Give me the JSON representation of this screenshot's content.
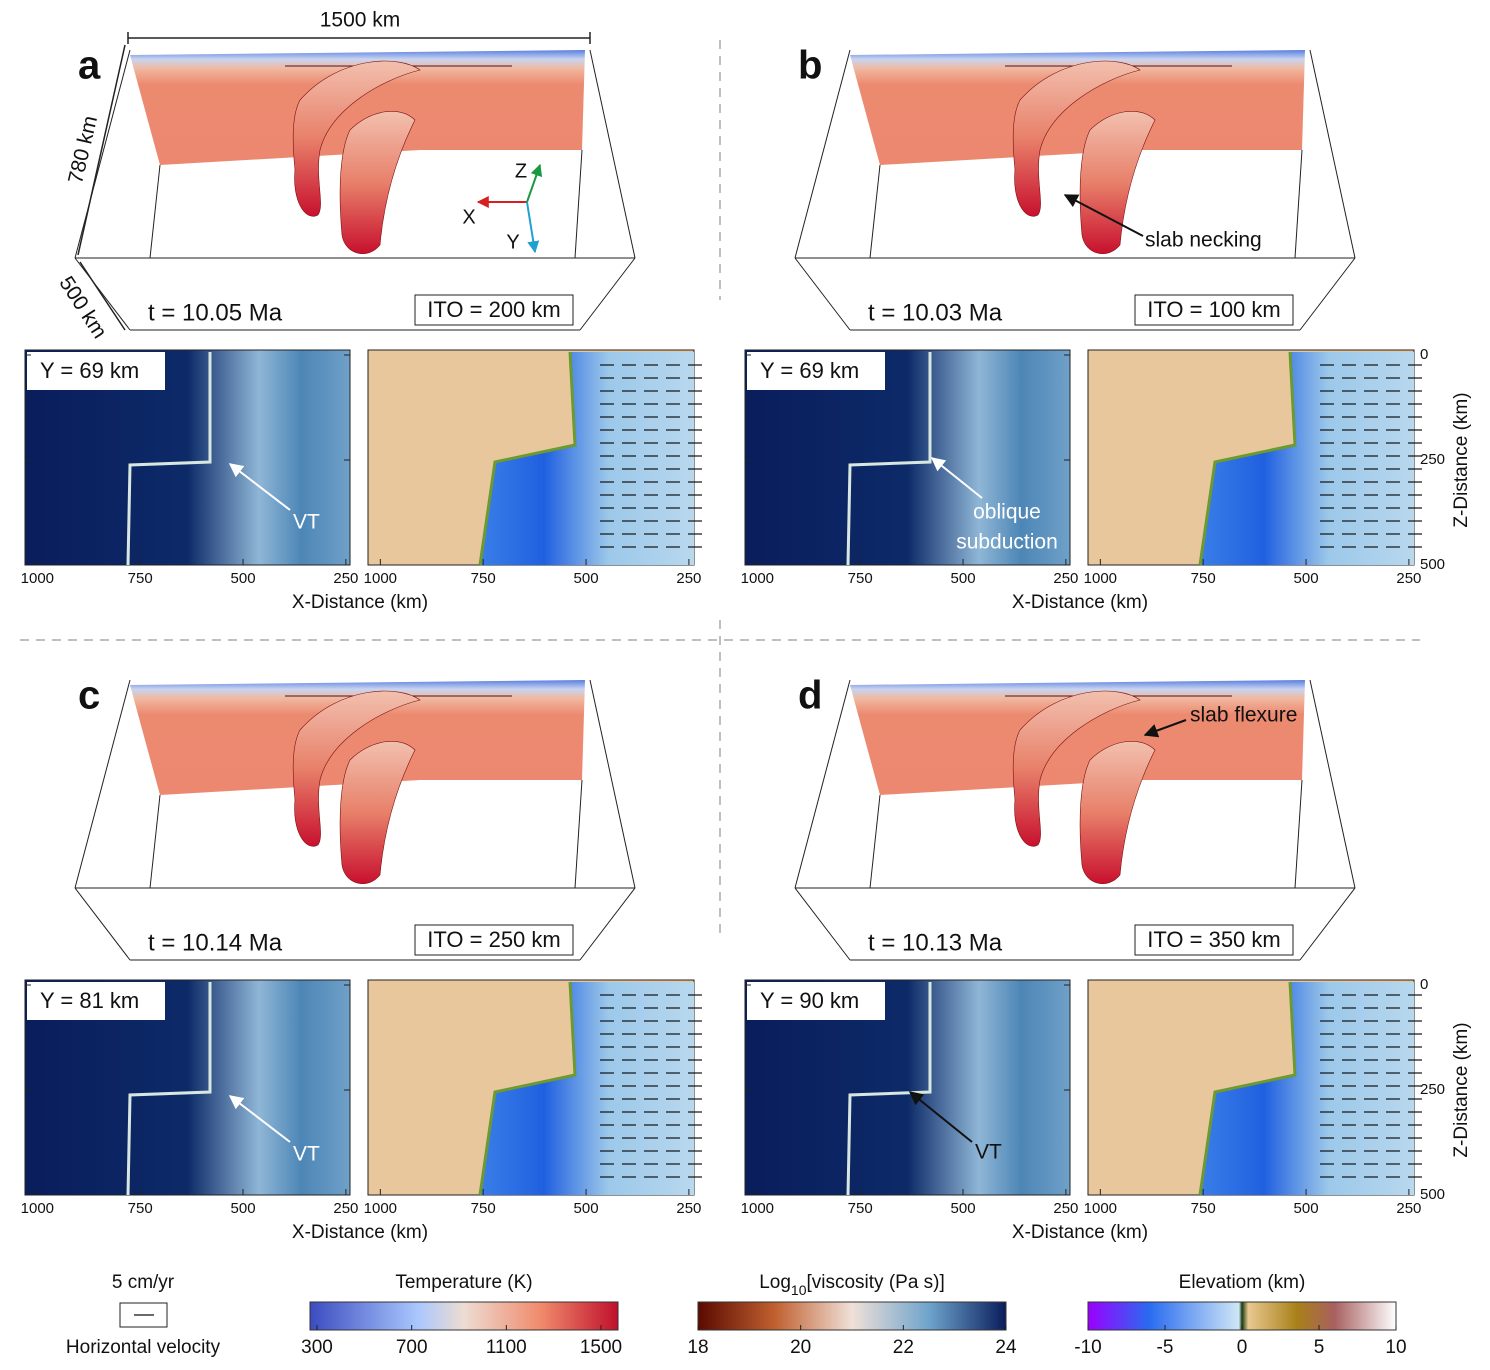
{
  "figure": {
    "dimensions": {
      "width_label": "1500 km",
      "height_label": "780 km",
      "depth_label": "500 km"
    },
    "axes_triad": [
      "X",
      "Y",
      "Z"
    ],
    "panels": [
      {
        "letter": "a",
        "time": "t = 10.05 Ma",
        "ito": "ITO = 200 km",
        "slice": "Y = 69 km",
        "annotations": [
          "VT"
        ]
      },
      {
        "letter": "b",
        "time": "t = 10.03 Ma",
        "ito": "ITO = 100 km",
        "slice": "Y = 69 km",
        "annotations": [
          "slab necking",
          "oblique",
          "subduction"
        ]
      },
      {
        "letter": "c",
        "time": "t = 10.14 Ma",
        "ito": "ITO = 250 km",
        "slice": "Y = 81 km",
        "annotations": [
          "VT"
        ]
      },
      {
        "letter": "d",
        "time": "t = 10.13 Ma",
        "ito": "ITO = 350 km",
        "slice": "Y = 90 km",
        "annotations": [
          "slab flexure",
          "VT"
        ]
      }
    ],
    "x_ticks": [
      1000,
      750,
      500,
      250
    ],
    "x_label": "X-Distance (km)",
    "z_ticks": [
      0,
      250,
      500
    ],
    "z_label": "Z-Distance (km)",
    "legends": {
      "velocity": {
        "scale": "5 cm/yr",
        "title": "Horizontal velocity"
      },
      "temperature": {
        "title": "Temperature (K)",
        "ticks": [
          300,
          700,
          1100,
          1500
        ]
      },
      "viscosity": {
        "title_base": "Log",
        "title_sub": "10",
        "title_rest": "[viscosity (Pa s)]",
        "ticks": [
          18,
          20,
          22,
          24
        ]
      },
      "elevation": {
        "title": "Elevatiom (km)",
        "ticks": [
          -10,
          -5,
          0,
          5,
          10
        ]
      }
    }
  }
}
